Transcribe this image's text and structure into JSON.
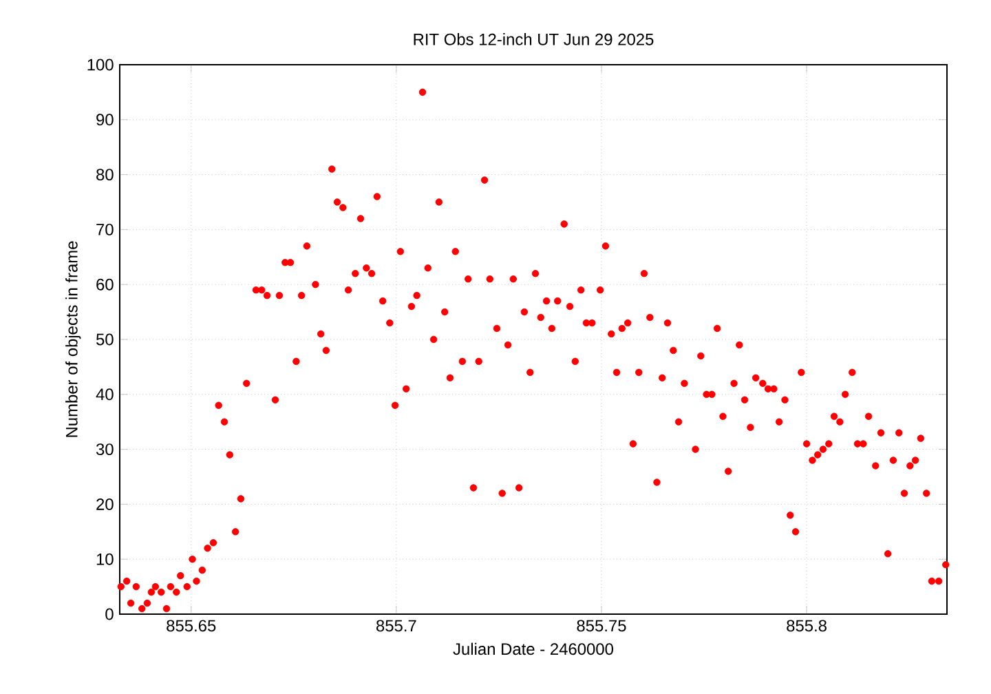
{
  "chart_data": {
    "type": "scatter",
    "title": "RIT Obs 12-inch UT Jun 29 2025",
    "xlabel": "Julian Date - 2460000",
    "ylabel": "Number of objects in frame",
    "xlim": [
      855.6326,
      855.8342
    ],
    "ylim": [
      0,
      100
    ],
    "xticks": [
      855.65,
      855.7,
      855.75,
      855.8
    ],
    "yticks": [
      0,
      10,
      20,
      30,
      40,
      50,
      60,
      70,
      80,
      90,
      100
    ],
    "grid": true,
    "marker": "circle",
    "series": [
      {
        "color": "#ff0000",
        "x": [
          855.6329,
          855.6343,
          855.6353,
          855.6366,
          855.638,
          855.6393,
          855.6403,
          855.6413,
          855.6427,
          855.644,
          855.645,
          855.6464,
          855.6474,
          855.649,
          855.6503,
          855.6513,
          855.6527,
          855.654,
          855.6554,
          855.6567,
          855.6581,
          855.6594,
          855.6608,
          855.6621,
          855.6635,
          855.6658,
          855.6672,
          855.6685,
          855.6705,
          855.6715,
          855.6729,
          855.6742,
          855.6756,
          855.6769,
          855.6782,
          855.6803,
          855.6816,
          855.6829,
          855.6843,
          855.6856,
          855.687,
          855.6883,
          855.69,
          855.6913,
          855.6927,
          855.694,
          855.6953,
          855.6967,
          855.6984,
          855.6997,
          855.701,
          855.7024,
          855.7037,
          855.705,
          855.7064,
          855.7077,
          855.7091,
          855.7104,
          855.7118,
          855.7131,
          855.7144,
          855.7161,
          855.7175,
          855.7188,
          855.7201,
          855.7215,
          855.7228,
          855.7245,
          855.7258,
          855.7272,
          855.7285,
          855.7299,
          855.7312,
          855.7326,
          855.7339,
          855.7352,
          855.7366,
          855.7379,
          855.7393,
          855.7409,
          855.7423,
          855.7436,
          855.745,
          855.7463,
          855.7477,
          855.7497,
          855.751,
          855.7524,
          855.7537,
          855.755,
          855.7564,
          855.7577,
          855.7591,
          855.7604,
          855.7618,
          855.7635,
          855.7648,
          855.7661,
          855.7675,
          855.7688,
          855.7702,
          855.7729,
          855.7742,
          855.7756,
          855.7769,
          855.7782,
          855.7796,
          855.7809,
          855.7823,
          855.7836,
          855.7849,
          855.7863,
          855.7876,
          855.7893,
          855.7906,
          855.792,
          855.7933,
          855.7947,
          855.796,
          855.7973,
          855.7987,
          855.8,
          855.8014,
          855.8027,
          855.804,
          855.8054,
          855.8067,
          855.8081,
          855.8094,
          855.8111,
          855.8124,
          855.8138,
          855.8151,
          855.8168,
          855.8181,
          855.8198,
          855.8211,
          855.8225,
          855.8238,
          855.8252,
          855.8265,
          855.8278,
          855.8292,
          855.8305,
          855.8322,
          855.8339
        ],
        "values": [
          5,
          6,
          2,
          5,
          1,
          2,
          4,
          5,
          4,
          1,
          5,
          4,
          7,
          5,
          10,
          6,
          8,
          12,
          13,
          38,
          35,
          29,
          15,
          21,
          42,
          59,
          59,
          58,
          39,
          58,
          64,
          64,
          46,
          58,
          67,
          60,
          51,
          48,
          81,
          75,
          74,
          59,
          62,
          72,
          63,
          62,
          76,
          57,
          53,
          38,
          66,
          41,
          56,
          58,
          95,
          63,
          50,
          75,
          55,
          43,
          66,
          46,
          61,
          23,
          46,
          79,
          61,
          52,
          22,
          49,
          61,
          23,
          55,
          44,
          62,
          54,
          57,
          52,
          57,
          71,
          56,
          46,
          59,
          53,
          53,
          59,
          67,
          51,
          44,
          52,
          53,
          31,
          44,
          62,
          54,
          24,
          43,
          53,
          48,
          35,
          42,
          30,
          47,
          40,
          40,
          52,
          36,
          26,
          42,
          49,
          39,
          34,
          43,
          42,
          41,
          41,
          35,
          39,
          18,
          15,
          44,
          31,
          28,
          29,
          30,
          31,
          36,
          35,
          40,
          44,
          31,
          31,
          36,
          27,
          33,
          11,
          28,
          33,
          22,
          27,
          28,
          32,
          22,
          6,
          6,
          9
        ]
      }
    ]
  }
}
